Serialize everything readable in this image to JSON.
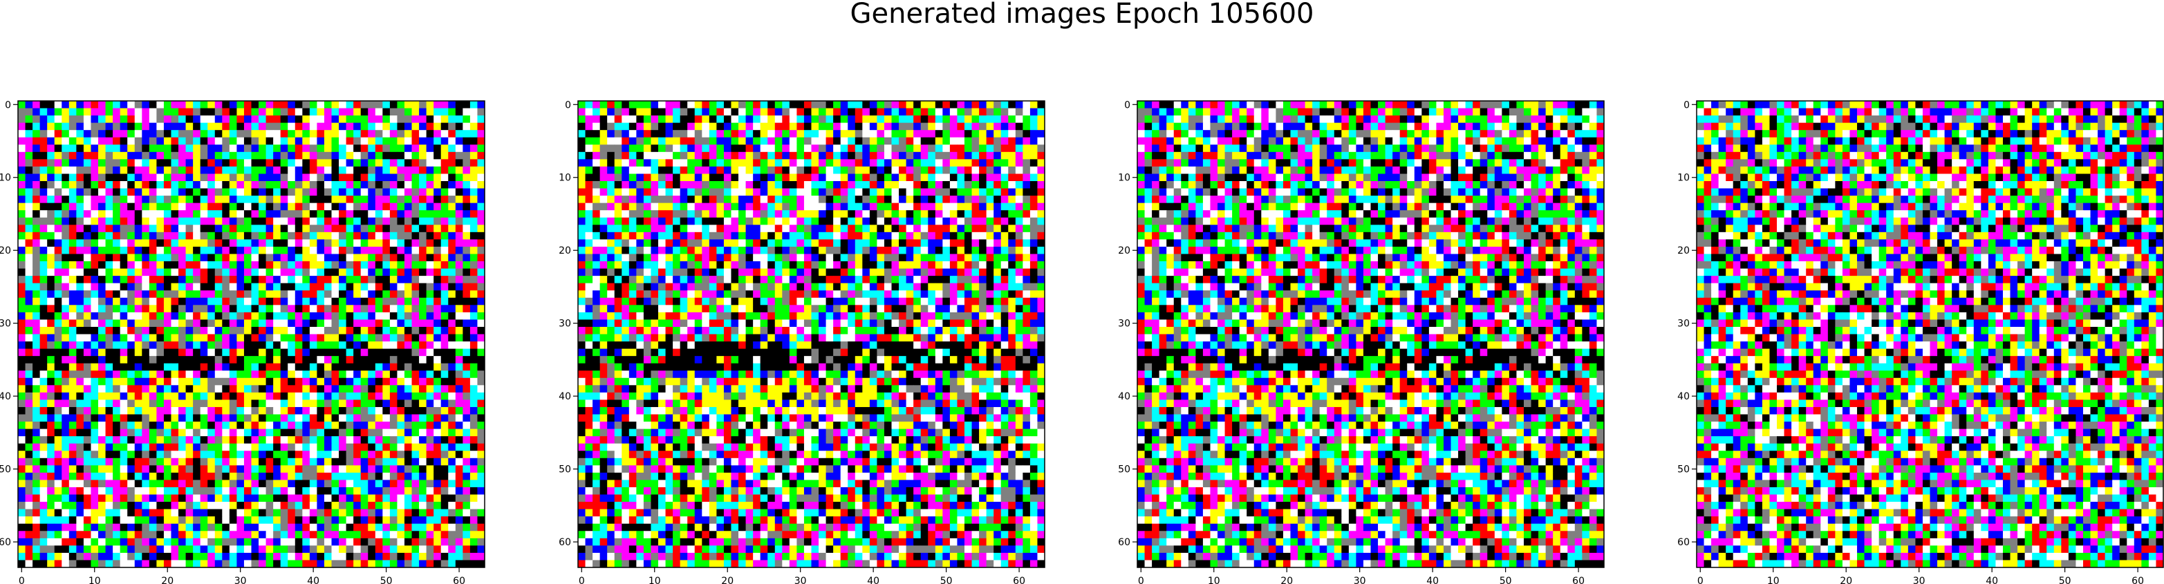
{
  "figure": {
    "suptitle": "Generated images Epoch 105600"
  },
  "chart_data": [
    {
      "type": "heatmap",
      "title": "",
      "xlabel": "",
      "ylabel": "",
      "grid_size": 64,
      "xlim": [
        0,
        64
      ],
      "ylim": [
        64,
        0
      ],
      "xticks": [
        0,
        10,
        20,
        30,
        40,
        50,
        60
      ],
      "yticks": [
        0,
        10,
        20,
        30,
        40,
        50,
        60
      ],
      "seed": 11,
      "dark_band_rows": [
        34,
        35,
        36
      ],
      "bright_rows": [
        38,
        39,
        40,
        41,
        42
      ],
      "grid": false
    },
    {
      "type": "heatmap",
      "title": "",
      "xlabel": "",
      "ylabel": "",
      "grid_size": 64,
      "xlim": [
        0,
        64
      ],
      "ylim": [
        64,
        0
      ],
      "xticks": [
        0,
        10,
        20,
        30,
        40,
        50,
        60
      ],
      "yticks": [
        0,
        10,
        20,
        30,
        40,
        50,
        60
      ],
      "seed": 23,
      "dark_band_rows": [
        33,
        34,
        35,
        36
      ],
      "bright_rows": [
        38,
        39,
        40,
        41,
        42
      ],
      "grid": false
    },
    {
      "type": "heatmap",
      "title": "",
      "xlabel": "",
      "ylabel": "",
      "grid_size": 64,
      "xlim": [
        0,
        64
      ],
      "ylim": [
        64,
        0
      ],
      "xticks": [
        0,
        10,
        20,
        30,
        40,
        50,
        60
      ],
      "yticks": [
        0,
        10,
        20,
        30,
        40,
        50,
        60
      ],
      "seed": 11,
      "dark_band_rows": [
        34,
        35,
        36
      ],
      "bright_rows": [
        38,
        39,
        40,
        41,
        42
      ],
      "grid": false
    },
    {
      "type": "heatmap",
      "title": "",
      "xlabel": "",
      "ylabel": "",
      "grid_size": 64,
      "xlim": [
        0,
        64
      ],
      "ylim": [
        64,
        0
      ],
      "xticks": [
        0,
        10,
        20,
        30,
        40,
        50,
        60
      ],
      "yticks": [
        0,
        10,
        20,
        30,
        40,
        50,
        60
      ],
      "seed": 57,
      "dark_band_rows": [],
      "bright_rows": [],
      "grid": false
    }
  ],
  "palette": [
    "#000000",
    "#ff0000",
    "#00ff00",
    "#0000ff",
    "#ffff00",
    "#00ffff",
    "#ff00ff",
    "#ffffff",
    "#808080"
  ]
}
